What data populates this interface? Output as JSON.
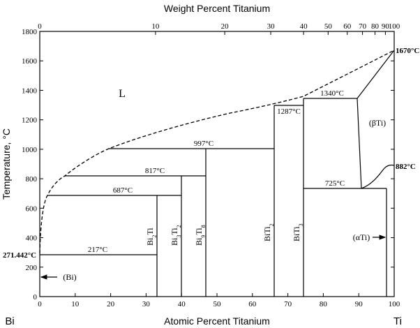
{
  "top_axis": {
    "title": "Weight Percent Titanium",
    "ticks": [
      "0",
      "10",
      "20",
      "30",
      "40",
      "50",
      "60",
      "70",
      "80",
      "90",
      "100"
    ]
  },
  "bottom_axis": {
    "title": "Atomic Percent Titanium",
    "ticks": [
      "0",
      "10",
      "20",
      "30",
      "40",
      "50",
      "60",
      "70",
      "80",
      "90",
      "100"
    ],
    "left_end": "Bi",
    "right_end": "Ti"
  },
  "left_axis": {
    "title": "Temperature, °C",
    "ticks": [
      "0",
      "200",
      "400",
      "600",
      "800",
      "1000",
      "1200",
      "1400",
      "1600",
      "1800"
    ]
  },
  "annotations": {
    "t_1670": "1670°C",
    "t_882": "882°C",
    "t_271": "271.442°C",
    "t_1340": "1340°C",
    "t_1287": "1287°C",
    "t_997": "997°C",
    "t_817": "817°C",
    "t_687": "687°C",
    "t_725": "725°C",
    "t_217": "217°C"
  },
  "phases": {
    "liquid": "L",
    "beta_ti": "(βTi)",
    "alpha_ti": "(αTi)",
    "bi": "(Bi)",
    "bi2ti": "Bi2Ti",
    "bi3ti2": "Bi3Ti2",
    "bi9ti8": "Bi9Ti8",
    "biti2": "BiTi2",
    "biti3": "BiTi3"
  },
  "chart_data": {
    "type": "phase-diagram",
    "x_label": "Atomic Percent Titanium",
    "x2_label": "Weight Percent Titanium",
    "y_label": "Temperature, °C",
    "xlim": [
      0,
      100
    ],
    "ylim": [
      0,
      1800
    ],
    "compounds": [
      {
        "name": "Bi2Ti",
        "at_pct_ti": 33.3,
        "decomposes_at": 687
      },
      {
        "name": "Bi3Ti2",
        "at_pct_ti": 40,
        "decomposes_at": 817
      },
      {
        "name": "Bi9Ti8",
        "at_pct_ti": 47,
        "decomposes_at": 997
      },
      {
        "name": "BiTi2",
        "at_pct_ti": 66.7,
        "decomposes_at": 1287
      },
      {
        "name": "BiTi3",
        "at_pct_ti": 75,
        "decomposes_at": 1340
      }
    ],
    "invariants": [
      {
        "t": 1340,
        "x_from": 75,
        "x_to": 90
      },
      {
        "t": 1287,
        "x_from": 66.7,
        "x_to": 75
      },
      {
        "t": 997,
        "x_from": 20,
        "x_to": 66.7
      },
      {
        "t": 817,
        "x_from": 7,
        "x_to": 47
      },
      {
        "t": 687,
        "x_from": 2,
        "x_to": 40
      },
      {
        "t": 725,
        "x_from": 75,
        "x_to": 98.5
      },
      {
        "t": 217,
        "x_from": 0,
        "x_to": 33.3
      }
    ],
    "melting_points": [
      {
        "element": "Bi",
        "t": 271.442
      },
      {
        "element": "Ti",
        "t": 1670
      }
    ],
    "allotropic_transition": {
      "element": "Ti",
      "t": 882
    }
  }
}
